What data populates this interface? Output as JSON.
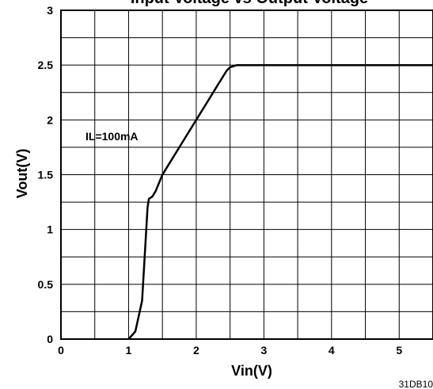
{
  "chart_data": {
    "type": "line",
    "title": "Input Voltage vs Output Voltage",
    "xlabel": "Vin(V)",
    "ylabel": "Vout(V)",
    "xlim": [
      0,
      5.5
    ],
    "ylim": [
      0,
      3
    ],
    "x_ticks": [
      0,
      1,
      2,
      3,
      4,
      5
    ],
    "y_ticks": [
      0,
      0.5,
      1,
      1.5,
      2,
      2.5,
      3
    ],
    "x_tick_labels": [
      "0",
      "1",
      "2",
      "3",
      "4",
      "5"
    ],
    "y_tick_labels": [
      "0",
      "0.5",
      "1",
      "1.5",
      "2",
      "2.5",
      "3"
    ],
    "grid": true,
    "annotation": "IL=100mA",
    "figure_code": "31DB10",
    "series": [
      {
        "x": [
          1.0,
          1.1,
          1.2,
          1.28,
          1.3,
          1.35,
          1.4,
          1.5,
          1.6,
          1.8,
          2.0,
          2.2,
          2.3,
          2.45,
          2.5,
          2.6,
          5.5
        ],
        "y": [
          0.0,
          0.07,
          0.35,
          1.2,
          1.28,
          1.3,
          1.35,
          1.5,
          1.6,
          1.8,
          2.0,
          2.2,
          2.3,
          2.45,
          2.48,
          2.5,
          2.5
        ]
      }
    ]
  }
}
